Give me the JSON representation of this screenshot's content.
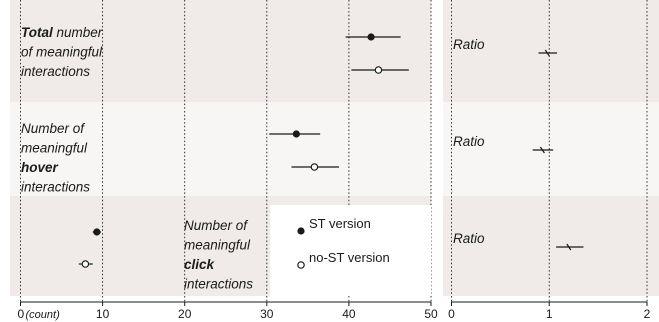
{
  "colors": {
    "band_dark": "#f0ebe9",
    "band_light": "#f8f6f5",
    "ink": "#1a1a1a"
  },
  "chart_data": {
    "type": "scatter",
    "style": "forest plot with horizontal confidence intervals",
    "panels": [
      {
        "id": "count",
        "xlim": [
          0,
          50
        ],
        "ticks": [
          0,
          10,
          20,
          30,
          40,
          50
        ],
        "tick_labels": [
          "0",
          "10",
          "20",
          "30",
          "40",
          "50"
        ],
        "first_tick_suffix": "(count)",
        "grid": "vertical dotted"
      },
      {
        "id": "ratio",
        "xlim": [
          0,
          2
        ],
        "ticks": [
          0,
          1,
          2
        ],
        "tick_labels": [
          "0",
          "1",
          "2"
        ],
        "grid": "vertical dotted"
      }
    ],
    "rows": [
      {
        "label_parts": [
          {
            "text": "Total",
            "bold": true
          },
          {
            "text": " number"
          },
          {
            "newline": true
          },
          {
            "text": "of meaningful"
          },
          {
            "newline": true
          },
          {
            "text": "interactions"
          }
        ],
        "ratio_label": "Ratio",
        "counts": [
          {
            "series": "ST version",
            "est": 42.7,
            "lo": 39.6,
            "hi": 46.3
          },
          {
            "series": "no-ST version",
            "est": 43.6,
            "lo": 40.3,
            "hi": 47.3
          }
        ],
        "ratio": {
          "est": 0.98,
          "lo": 0.89,
          "hi": 1.08
        }
      },
      {
        "label_parts": [
          {
            "text": "Number of"
          },
          {
            "newline": true
          },
          {
            "text": "meaningful"
          },
          {
            "newline": true
          },
          {
            "text": "hover",
            "bold": true
          },
          {
            "newline": true
          },
          {
            "text": "interactions"
          }
        ],
        "ratio_label": "Ratio",
        "counts": [
          {
            "series": "ST version",
            "est": 33.6,
            "lo": 30.3,
            "hi": 36.5
          },
          {
            "series": "no-ST version",
            "est": 35.8,
            "lo": 33.0,
            "hi": 38.8
          }
        ],
        "ratio": {
          "est": 0.93,
          "lo": 0.83,
          "hi": 1.04
        }
      },
      {
        "label_parts": [
          {
            "text": "Number of"
          },
          {
            "newline": true
          },
          {
            "text": "meaningful"
          },
          {
            "newline": true
          },
          {
            "text": "click",
            "bold": true
          },
          {
            "newline": true
          },
          {
            "text": "interactions"
          }
        ],
        "ratio_label": "Ratio",
        "counts": [
          {
            "series": "ST version",
            "est": 9.3,
            "lo": 8.8,
            "hi": 9.8
          },
          {
            "series": "no-ST version",
            "est": 7.9,
            "lo": 7.1,
            "hi": 8.8
          }
        ],
        "ratio": {
          "est": 1.2,
          "lo": 1.07,
          "hi": 1.35
        }
      }
    ],
    "legend": [
      {
        "name": "ST version",
        "marker": "filled circle"
      },
      {
        "name": "no-ST version",
        "marker": "open circle"
      }
    ]
  }
}
